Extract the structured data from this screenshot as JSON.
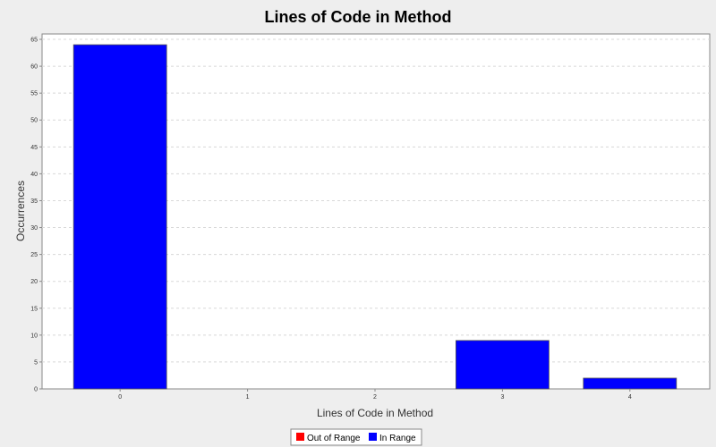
{
  "chart_data": {
    "type": "bar",
    "title": "Lines of Code in Method",
    "xlabel": "Lines of Code in Method",
    "ylabel": "Occurrences",
    "categories": [
      "0",
      "1",
      "2",
      "3",
      "4"
    ],
    "series": [
      {
        "name": "Out of Range",
        "color": "#ff0000",
        "values": [
          0,
          0,
          0,
          0,
          0
        ]
      },
      {
        "name": "In Range",
        "color": "#0000ff",
        "values": [
          64,
          0,
          0,
          9,
          2
        ]
      }
    ],
    "ylim": [
      0,
      66
    ],
    "yticks": [
      "0",
      "5",
      "10",
      "15",
      "20",
      "25",
      "30",
      "35",
      "40",
      "45",
      "50",
      "55",
      "60",
      "65"
    ],
    "grid": true,
    "legend": "bottom"
  }
}
